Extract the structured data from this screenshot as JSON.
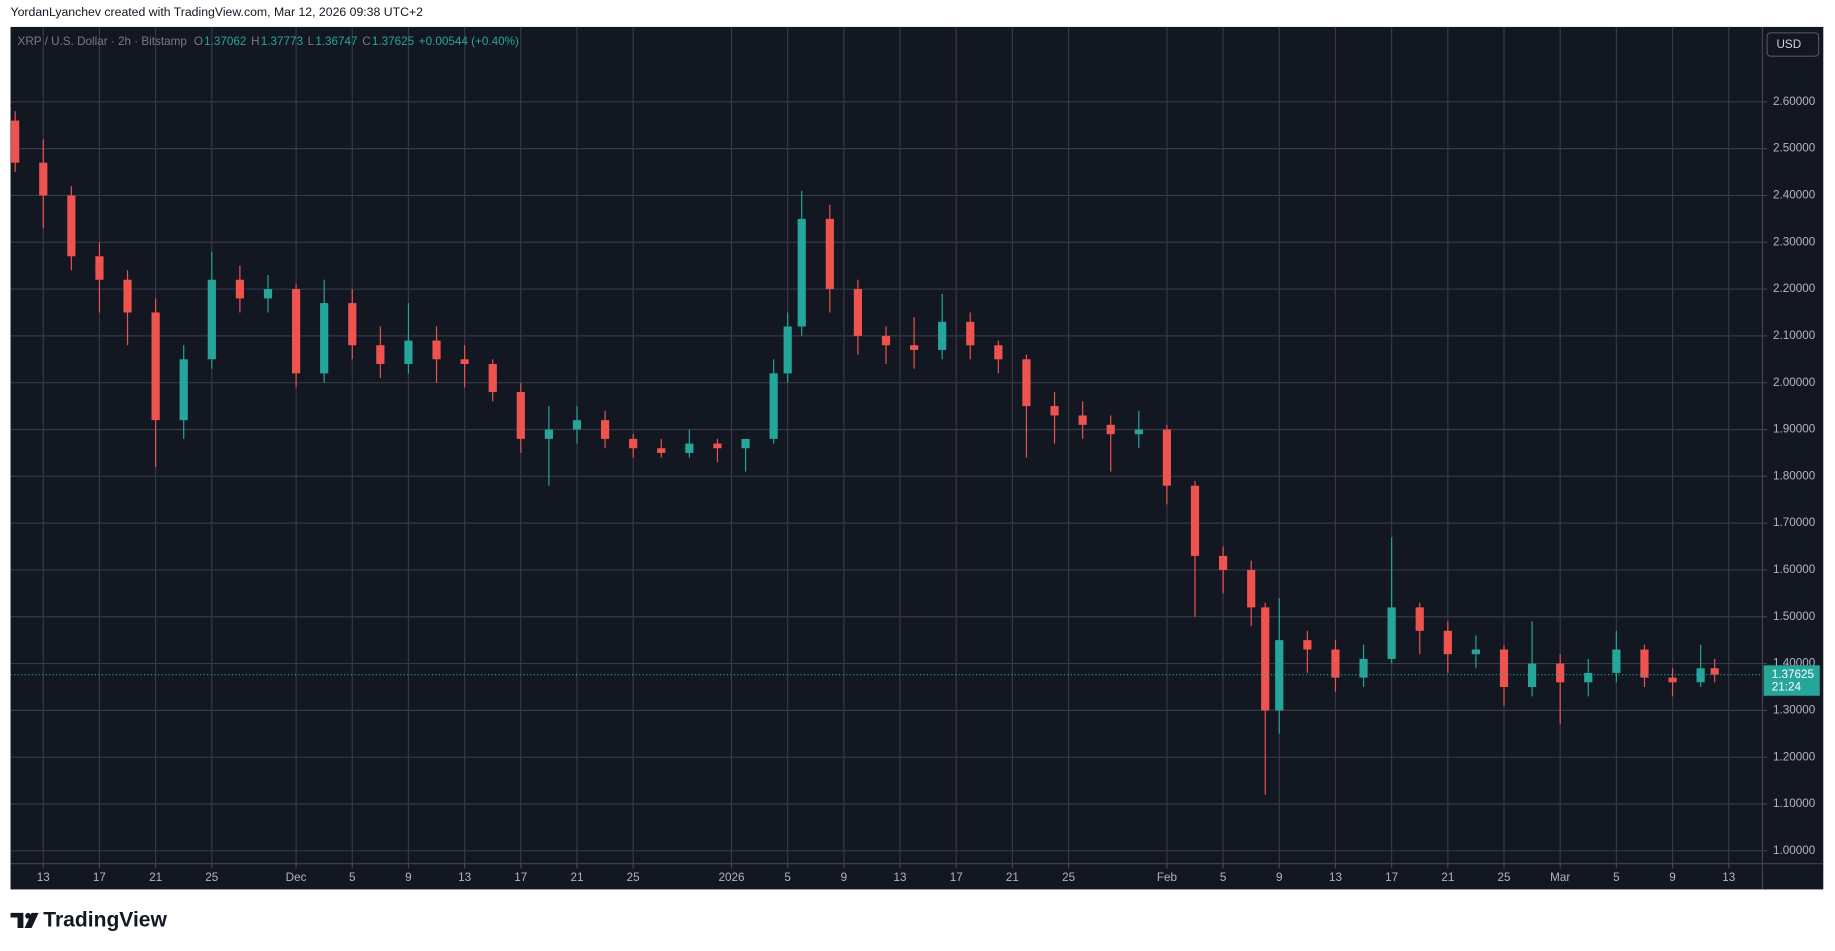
{
  "header": "YordanLyanchev created with TradingView.com, Mar 12, 2026 09:38 UTC+2",
  "brand": "TradingView",
  "chart_data": {
    "type": "candlestick",
    "title": "XRP / U.S. Dollar · 2h · Bitstamp",
    "legend_values": [
      {
        "label": "O",
        "value": 1.37062
      },
      {
        "label": "H",
        "value": 1.37773
      },
      {
        "label": "L",
        "value": 1.36747
      },
      {
        "label": "C",
        "value": 1.37625
      }
    ],
    "change": "+0.00544 (+0.40%)",
    "currency": "USD",
    "up_color": "#26a69a",
    "down_color": "#ef5350",
    "grid": true,
    "x": [
      11,
      13,
      15,
      17,
      19,
      21,
      23,
      25,
      27,
      29,
      31,
      33,
      35,
      37,
      39,
      41,
      43,
      45,
      47,
      49,
      51,
      53,
      55,
      57,
      59,
      61,
      63,
      65,
      66,
      67,
      69,
      71,
      73,
      75,
      77,
      79,
      81,
      83,
      85,
      87,
      89,
      91,
      93,
      95,
      97,
      99,
      100,
      101,
      103,
      105,
      107,
      109,
      111,
      113,
      115,
      117,
      119,
      121,
      123,
      125,
      127,
      129,
      131,
      132
    ],
    "open": [
      2.56,
      2.47,
      2.4,
      2.27,
      2.22,
      2.15,
      1.92,
      2.05,
      2.22,
      2.18,
      2.2,
      2.02,
      2.17,
      2.08,
      2.04,
      2.09,
      2.05,
      2.04,
      1.98,
      1.88,
      1.9,
      1.92,
      1.88,
      1.86,
      1.85,
      1.87,
      1.86,
      1.88,
      2.02,
      2.12,
      2.35,
      2.2,
      2.1,
      2.08,
      2.07,
      2.13,
      2.08,
      2.05,
      1.95,
      1.93,
      1.91,
      1.89,
      1.9,
      1.78,
      1.63,
      1.6,
      1.52,
      1.3,
      1.45,
      1.43,
      1.37,
      1.41,
      1.52,
      1.47,
      1.42,
      1.43,
      1.35,
      1.4,
      1.36,
      1.38,
      1.43,
      1.37,
      1.36,
      1.39
    ],
    "high": [
      2.58,
      2.52,
      2.42,
      2.3,
      2.24,
      2.18,
      2.08,
      2.28,
      2.25,
      2.23,
      2.21,
      2.22,
      2.2,
      2.12,
      2.17,
      2.12,
      2.08,
      2.05,
      2.0,
      1.95,
      1.95,
      1.94,
      1.89,
      1.88,
      1.9,
      1.88,
      1.88,
      2.05,
      2.15,
      2.41,
      2.38,
      2.22,
      2.12,
      2.14,
      2.19,
      2.15,
      2.09,
      2.06,
      1.98,
      1.96,
      1.93,
      1.94,
      1.91,
      1.79,
      1.65,
      1.62,
      1.53,
      1.54,
      1.47,
      1.45,
      1.44,
      1.67,
      1.53,
      1.49,
      1.46,
      1.44,
      1.49,
      1.42,
      1.41,
      1.47,
      1.44,
      1.39,
      1.44,
      1.41
    ],
    "low": [
      2.45,
      2.33,
      2.24,
      2.15,
      2.08,
      1.82,
      1.88,
      2.03,
      2.15,
      2.15,
      1.99,
      2.0,
      2.05,
      2.01,
      2.02,
      2.0,
      1.99,
      1.96,
      1.85,
      1.78,
      1.87,
      1.86,
      1.84,
      1.84,
      1.84,
      1.83,
      1.81,
      1.87,
      2.0,
      2.1,
      2.15,
      2.06,
      2.04,
      2.03,
      2.05,
      2.05,
      2.02,
      1.84,
      1.87,
      1.88,
      1.81,
      1.86,
      1.74,
      1.5,
      1.55,
      1.48,
      1.12,
      1.25,
      1.38,
      1.34,
      1.35,
      1.4,
      1.42,
      1.38,
      1.39,
      1.31,
      1.33,
      1.27,
      1.33,
      1.36,
      1.35,
      1.33,
      1.35,
      1.36
    ],
    "close": [
      2.47,
      2.4,
      2.27,
      2.22,
      2.15,
      1.92,
      2.05,
      2.22,
      2.18,
      2.2,
      2.02,
      2.17,
      2.08,
      2.04,
      2.09,
      2.05,
      2.04,
      1.98,
      1.88,
      1.9,
      1.92,
      1.88,
      1.86,
      1.85,
      1.87,
      1.86,
      1.88,
      2.02,
      2.12,
      2.35,
      2.2,
      2.1,
      2.08,
      2.07,
      2.13,
      2.08,
      2.05,
      1.95,
      1.93,
      1.91,
      1.89,
      1.9,
      1.78,
      1.63,
      1.6,
      1.52,
      1.3,
      1.45,
      1.43,
      1.37,
      1.41,
      1.52,
      1.47,
      1.42,
      1.43,
      1.35,
      1.4,
      1.36,
      1.38,
      1.43,
      1.37,
      1.36,
      1.39,
      1.37625
    ],
    "last_price": 1.37625,
    "countdown": "21:24",
    "xlim": [
      10.67,
      135.4
    ],
    "xticks": [
      {
        "value": 13,
        "label": "13"
      },
      {
        "value": 17,
        "label": "17"
      },
      {
        "value": 21,
        "label": "21"
      },
      {
        "value": 25,
        "label": "25"
      },
      {
        "value": 31,
        "label": "Dec"
      },
      {
        "value": 35,
        "label": "5"
      },
      {
        "value": 39,
        "label": "9"
      },
      {
        "value": 43,
        "label": "13"
      },
      {
        "value": 47,
        "label": "17"
      },
      {
        "value": 51,
        "label": "21"
      },
      {
        "value": 55,
        "label": "25"
      },
      {
        "value": 62,
        "label": "2026"
      },
      {
        "value": 66,
        "label": "5"
      },
      {
        "value": 70,
        "label": "9"
      },
      {
        "value": 74,
        "label": "13"
      },
      {
        "value": 78,
        "label": "17"
      },
      {
        "value": 82,
        "label": "21"
      },
      {
        "value": 86,
        "label": "25"
      },
      {
        "value": 93,
        "label": "Feb"
      },
      {
        "value": 97,
        "label": "5"
      },
      {
        "value": 101,
        "label": "9"
      },
      {
        "value": 105,
        "label": "13"
      },
      {
        "value": 109,
        "label": "17"
      },
      {
        "value": 113,
        "label": "21"
      },
      {
        "value": 117,
        "label": "25"
      },
      {
        "value": 121,
        "label": "Mar"
      },
      {
        "value": 125,
        "label": "5"
      },
      {
        "value": 129,
        "label": "9"
      },
      {
        "value": 133,
        "label": "13"
      }
    ],
    "ylim": [
      0.9725,
      2.76
    ],
    "yticks": [
      {
        "value": 1.0,
        "label": "1.00000"
      },
      {
        "value": 1.1,
        "label": "1.10000"
      },
      {
        "value": 1.2,
        "label": "1.20000"
      },
      {
        "value": 1.3,
        "label": "1.30000"
      },
      {
        "value": 1.4,
        "label": "1.40000"
      },
      {
        "value": 1.5,
        "label": "1.50000"
      },
      {
        "value": 1.6,
        "label": "1.60000"
      },
      {
        "value": 1.7,
        "label": "1.70000"
      },
      {
        "value": 1.8,
        "label": "1.80000"
      },
      {
        "value": 1.9,
        "label": "1.90000"
      },
      {
        "value": 2.0,
        "label": "2.00000"
      },
      {
        "value": 2.1,
        "label": "2.10000"
      },
      {
        "value": 2.2,
        "label": "2.20000"
      },
      {
        "value": 2.3,
        "label": "2.30000"
      },
      {
        "value": 2.4,
        "label": "2.40000"
      },
      {
        "value": 2.5,
        "label": "2.50000"
      },
      {
        "value": 2.6,
        "label": "2.60000"
      }
    ]
  }
}
